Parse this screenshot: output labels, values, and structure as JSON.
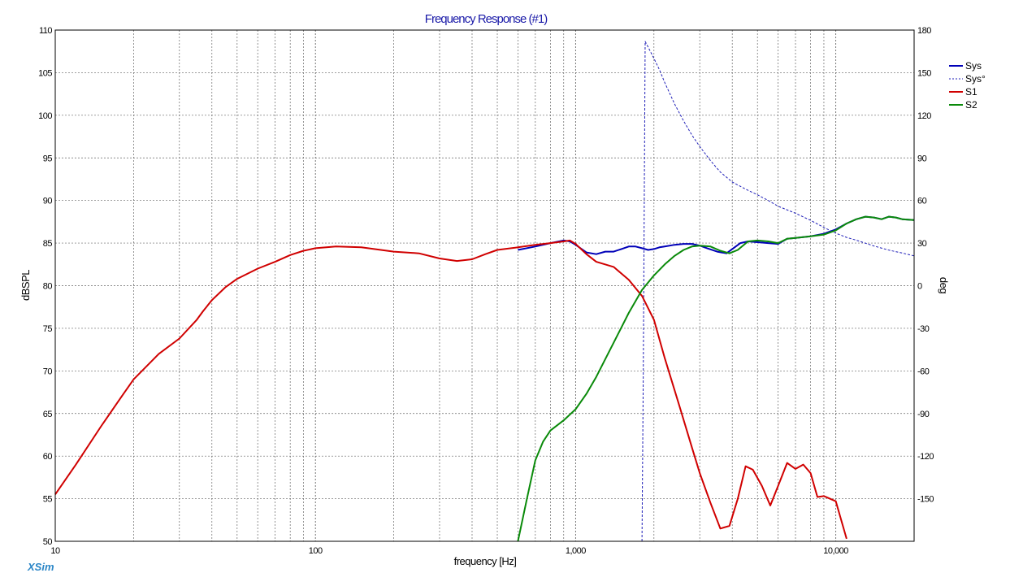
{
  "chart_data": {
    "type": "line",
    "title": "Frequency Response (#1)",
    "xlabel": "frequency [Hz]",
    "ylabel": "dBSPL",
    "y2label": "deg",
    "x_scale": "log",
    "xlim": [
      10,
      20000
    ],
    "ylim": [
      50,
      110
    ],
    "y2lim": [
      -180,
      180
    ],
    "x_tick_labels": [
      {
        "value": 10,
        "label": "10"
      },
      {
        "value": 100,
        "label": "100"
      },
      {
        "value": 1000,
        "label": "1,000"
      },
      {
        "value": 10000,
        "label": "10,000"
      }
    ],
    "y_ticks": [
      50,
      55,
      60,
      65,
      70,
      75,
      80,
      85,
      90,
      95,
      100,
      105,
      110
    ],
    "y2_ticks": [
      -150,
      -120,
      -90,
      -60,
      -30,
      0,
      30,
      60,
      90,
      120,
      150,
      180
    ],
    "grid": true,
    "legend_position": "top-right",
    "brand": "XSim",
    "series": [
      {
        "name": "Sys",
        "color": "#0000b8",
        "style": "solid",
        "axis": "left",
        "x": [
          600,
          700,
          800,
          900,
          950,
          1000,
          1100,
          1200,
          1300,
          1400,
          1500,
          1600,
          1700,
          1800,
          1900,
          2000,
          2100,
          2200,
          2400,
          2600,
          2800,
          3000,
          3200,
          3500,
          3800,
          4000,
          4300,
          4600,
          5000,
          5500,
          6000,
          6500,
          7000,
          8000,
          9000,
          10000,
          11000,
          12000,
          13000,
          14000,
          15000,
          16000,
          17000,
          18000,
          20000
        ],
        "y": [
          84.2,
          84.6,
          85.0,
          85.3,
          85.2,
          84.8,
          83.9,
          83.7,
          84.0,
          84.0,
          84.3,
          84.6,
          84.6,
          84.4,
          84.2,
          84.3,
          84.5,
          84.6,
          84.8,
          84.9,
          84.9,
          84.7,
          84.4,
          84.0,
          83.8,
          84.3,
          85.0,
          85.2,
          85.1,
          85.0,
          84.9,
          85.5,
          85.6,
          85.8,
          86.1,
          86.6,
          87.3,
          87.8,
          88.1,
          88.0,
          87.8,
          88.1,
          88.0,
          87.8,
          87.7
        ]
      },
      {
        "name": "Sys°",
        "color": "#2020b8",
        "style": "dashed",
        "axis": "right",
        "x": [
          1800,
          1820,
          1850,
          1900,
          2000,
          2100,
          2200,
          2400,
          2600,
          2800,
          3000,
          3300,
          3600,
          4000,
          4500,
          5000,
          5500,
          6000,
          7000,
          8000,
          9000,
          10000,
          11000,
          12000,
          14000,
          16000,
          18000,
          20000
        ],
        "y": [
          -180,
          -60,
          172,
          168,
          160,
          152,
          143,
          128,
          116,
          106,
          98,
          88,
          80,
          73,
          68,
          64,
          60,
          56,
          51,
          46,
          41,
          37,
          34,
          32,
          28,
          25,
          23,
          21
        ]
      },
      {
        "name": "S1",
        "color": "#d00000",
        "style": "solid",
        "axis": "left",
        "x": [
          10,
          12,
          15,
          18,
          20,
          25,
          30,
          35,
          37,
          40,
          45,
          50,
          60,
          70,
          80,
          90,
          100,
          120,
          150,
          200,
          250,
          300,
          350,
          400,
          450,
          500,
          600,
          700,
          800,
          900,
          950,
          1000,
          1100,
          1200,
          1400,
          1600,
          1800,
          2000,
          2200,
          2500,
          2800,
          3000,
          3300,
          3600,
          3900,
          4200,
          4500,
          4800,
          5200,
          5600,
          6000,
          6500,
          7000,
          7500,
          8000,
          8500,
          9000,
          10000,
          11000
        ],
        "y": [
          55.5,
          59,
          63.5,
          67,
          69,
          72,
          73.8,
          76,
          77,
          78.3,
          79.8,
          80.8,
          82,
          82.8,
          83.6,
          84.1,
          84.4,
          84.6,
          84.5,
          84,
          83.8,
          83.2,
          82.9,
          83.1,
          83.7,
          84.2,
          84.5,
          84.8,
          85.0,
          85.2,
          85.3,
          84.9,
          83.7,
          82.8,
          82.2,
          80.7,
          78.8,
          76,
          71.5,
          66,
          61,
          58,
          54.5,
          51.5,
          51.8,
          55,
          58.8,
          58.4,
          56.5,
          54.2,
          56.5,
          59.2,
          58.5,
          59.0,
          58.0,
          55.2,
          55.3,
          54.7,
          50.3
        ]
      },
      {
        "name": "S2",
        "color": "#0a8a0a",
        "style": "solid",
        "axis": "left",
        "x": [
          600,
          650,
          700,
          750,
          800,
          900,
          1000,
          1100,
          1200,
          1400,
          1600,
          1800,
          2000,
          2200,
          2400,
          2600,
          2800,
          3000,
          3300,
          3600,
          3900,
          4200,
          4600,
          5000,
          5500,
          6000,
          6500,
          7000,
          8000,
          9000,
          10000,
          11000,
          12000,
          13000,
          14000,
          15000,
          16000,
          17000,
          18000,
          20000
        ],
        "y": [
          50,
          55,
          59.5,
          61.7,
          63,
          64.2,
          65.5,
          67.3,
          69.3,
          73.3,
          76.8,
          79.5,
          81.2,
          82.5,
          83.5,
          84.2,
          84.6,
          84.7,
          84.6,
          84.1,
          83.8,
          84.2,
          85.2,
          85.3,
          85.2,
          85.0,
          85.5,
          85.6,
          85.8,
          86.0,
          86.5,
          87.3,
          87.8,
          88.1,
          88.0,
          87.8,
          88.1,
          88.0,
          87.8,
          87.7
        ]
      }
    ]
  }
}
